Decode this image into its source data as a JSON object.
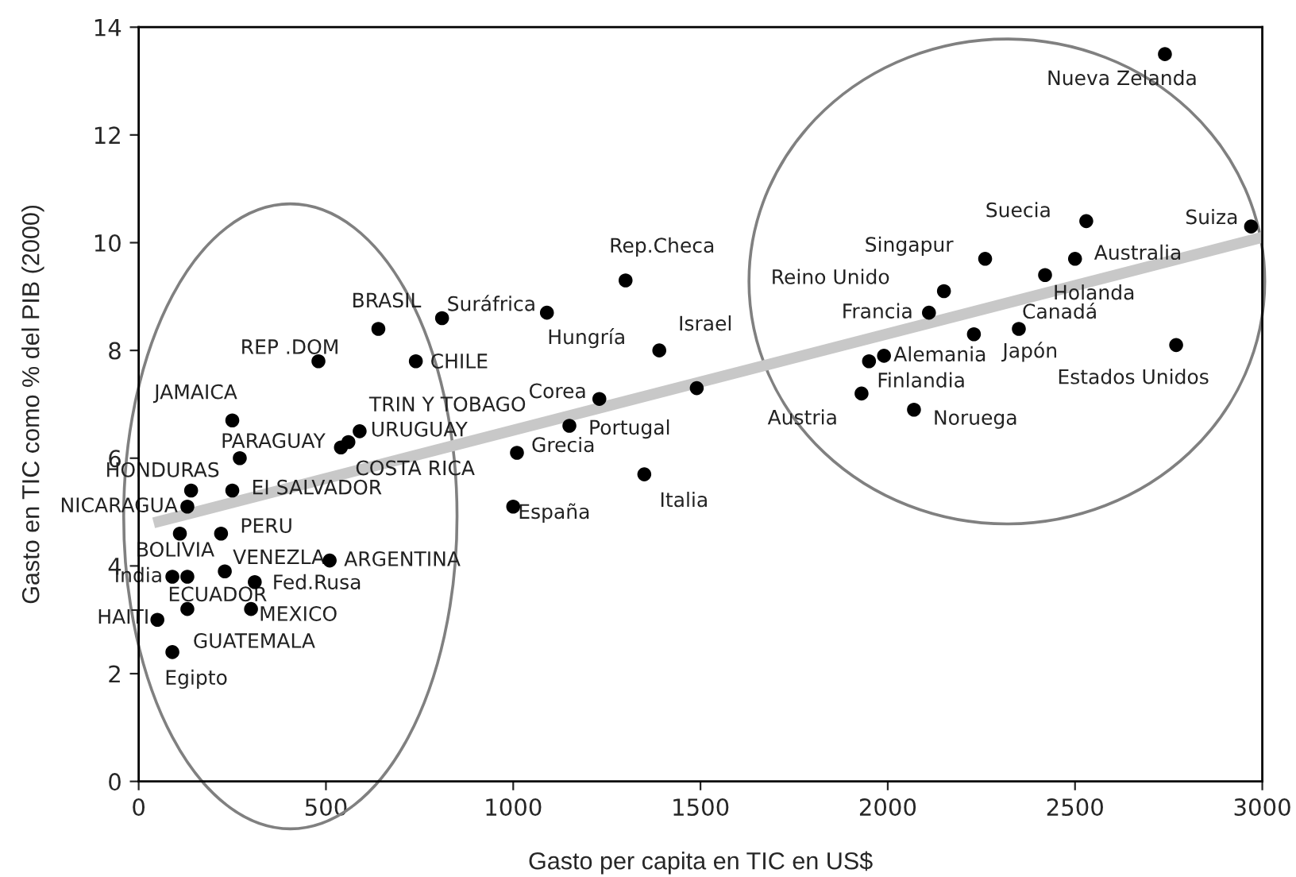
{
  "chart_data": {
    "type": "scatter",
    "xlabel": "Gasto per capita en TIC en US$",
    "ylabel": "Gasto en TIC como % del PIB (2000)",
    "xlim": [
      0,
      3000
    ],
    "xticks": [
      0,
      500,
      1000,
      1500,
      2000,
      2500,
      3000
    ],
    "ylim": [
      0,
      14
    ],
    "yticks": [
      0,
      2,
      4,
      6,
      8,
      10,
      12,
      14
    ],
    "grid": false,
    "series": [
      {
        "color": "#000000",
        "marker": "circle",
        "x": [
          2740,
          2530,
          2970,
          2260,
          2500,
          2420,
          2150,
          2110,
          2350,
          2230,
          1990,
          1950,
          1930,
          2070,
          2770,
          1300,
          810,
          1090,
          1390,
          1230,
          1150,
          1010,
          1000,
          1350,
          640,
          480,
          740,
          250,
          590,
          560,
          540,
          270,
          140,
          250,
          130,
          110,
          220,
          230,
          510,
          90,
          130,
          310,
          130,
          300,
          50,
          90,
          1490
        ],
        "values": [
          13.5,
          10.4,
          10.3,
          9.7,
          9.7,
          9.4,
          9.1,
          8.7,
          8.4,
          8.3,
          7.9,
          7.8,
          7.2,
          6.9,
          8.1,
          9.3,
          8.6,
          8.7,
          8.0,
          7.1,
          6.6,
          6.1,
          5.1,
          5.7,
          8.4,
          7.8,
          7.8,
          6.7,
          6.5,
          6.3,
          6.2,
          6.0,
          5.4,
          5.4,
          5.1,
          4.6,
          4.6,
          3.9,
          4.1,
          3.8,
          3.8,
          3.7,
          3.2,
          3.2,
          3.0,
          2.4,
          7.3
        ]
      },
      {
        "type": "line",
        "color": "#c8c8c8",
        "x": [
          40,
          3000
        ],
        "values": [
          4.8,
          10.1
        ]
      }
    ],
    "annotations": [
      {
        "text": "Nueva Zelanda",
        "x": 2740,
        "y": 13.5
      },
      {
        "text": "Suecia",
        "x": 2530,
        "y": 10.4
      },
      {
        "text": "Suiza",
        "x": 2970,
        "y": 10.3
      },
      {
        "text": "Singapur",
        "x": 2260,
        "y": 9.7
      },
      {
        "text": "Australia",
        "x": 2500,
        "y": 9.7
      },
      {
        "text": "Holanda",
        "x": 2420,
        "y": 9.4
      },
      {
        "text": "Reino Unido",
        "x": 2150,
        "y": 9.1
      },
      {
        "text": "Francia",
        "x": 2110,
        "y": 8.7
      },
      {
        "text": "Canadá",
        "x": 2350,
        "y": 8.4
      },
      {
        "text": "Japón",
        "x": 2230,
        "y": 8.3
      },
      {
        "text": "Alemania",
        "x": 1990,
        "y": 7.9
      },
      {
        "text": "Finlandia",
        "x": 1950,
        "y": 7.8
      },
      {
        "text": "Austria",
        "x": 1930,
        "y": 7.2
      },
      {
        "text": "Noruega",
        "x": 2070,
        "y": 6.9
      },
      {
        "text": "Estados Unidos",
        "x": 2770,
        "y": 8.1
      },
      {
        "text": "Rep.Checa",
        "x": 1300,
        "y": 9.3
      },
      {
        "text": "Suráfrica",
        "x": 810,
        "y": 8.6
      },
      {
        "text": "Hungría",
        "x": 1090,
        "y": 8.7
      },
      {
        "text": "Israel",
        "x": 1390,
        "y": 8.0
      },
      {
        "text": "Corea",
        "x": 1230,
        "y": 7.1
      },
      {
        "text": "Portugal",
        "x": 1150,
        "y": 6.6
      },
      {
        "text": "Grecia",
        "x": 1010,
        "y": 6.1
      },
      {
        "text": "España",
        "x": 1000,
        "y": 5.1
      },
      {
        "text": "Italia",
        "x": 1350,
        "y": 5.7
      },
      {
        "text": "BRASIL",
        "x": 640,
        "y": 8.4
      },
      {
        "text": "REP .DOM",
        "x": 480,
        "y": 7.8
      },
      {
        "text": "CHILE",
        "x": 740,
        "y": 7.8
      },
      {
        "text": "JAMAICA",
        "x": 250,
        "y": 6.7
      },
      {
        "text": "TRIN Y TOBAGO",
        "x": 590,
        "y": 6.5
      },
      {
        "text": "URUGUAY",
        "x": 560,
        "y": 6.3
      },
      {
        "text": "COSTA RICA",
        "x": 540,
        "y": 6.2
      },
      {
        "text": "PARAGUAY",
        "x": 270,
        "y": 6.0
      },
      {
        "text": "HONDURAS",
        "x": 140,
        "y": 5.4
      },
      {
        "text": "EI SALVADOR",
        "x": 250,
        "y": 5.4
      },
      {
        "text": "NICARAGUA",
        "x": 130,
        "y": 5.1
      },
      {
        "text": "BOLIVIA",
        "x": 110,
        "y": 4.6
      },
      {
        "text": "PERU",
        "x": 220,
        "y": 4.6
      },
      {
        "text": "VENEZLA",
        "x": 230,
        "y": 3.9
      },
      {
        "text": "ARGENTINA",
        "x": 510,
        "y": 4.1
      },
      {
        "text": "India",
        "x": 90,
        "y": 3.8
      },
      {
        "text": "ECUADOR",
        "x": 130,
        "y": 3.8
      },
      {
        "text": "Fed.Rusa",
        "x": 310,
        "y": 3.7
      },
      {
        "text": "GUATEMALA",
        "x": 130,
        "y": 3.2
      },
      {
        "text": "MEXICO",
        "x": 300,
        "y": 3.2
      },
      {
        "text": "HAITI",
        "x": 50,
        "y": 3.0
      },
      {
        "text": "Egipto",
        "x": 90,
        "y": 2.4
      }
    ]
  }
}
